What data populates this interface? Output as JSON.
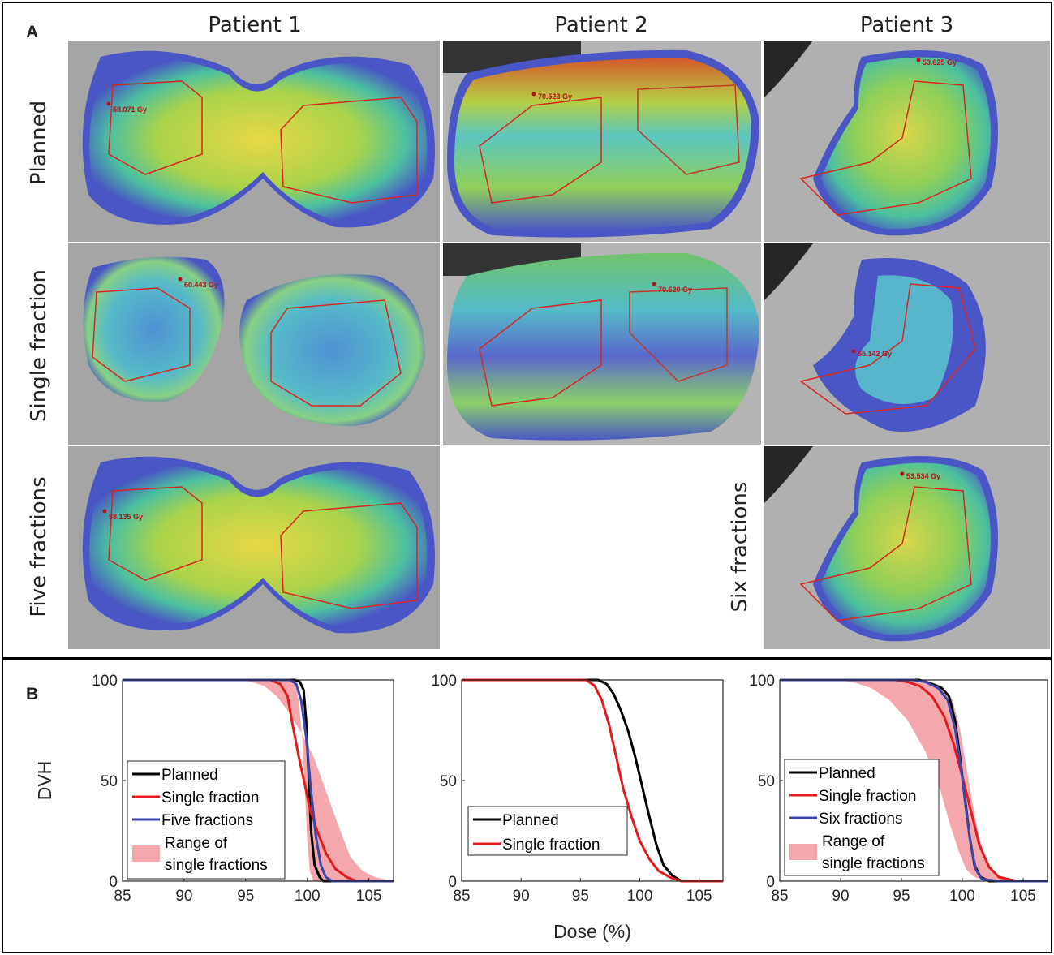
{
  "panels": {
    "a": "A",
    "b": "B"
  },
  "columns": [
    "Patient 1",
    "Patient 2",
    "Patient 3"
  ],
  "rows": {
    "planned": "Planned",
    "single": "Single fraction",
    "five": "Five fractions",
    "six": "Six fractions"
  },
  "dose_labels": {
    "p1_planned": "58.071 Gy",
    "p1_single": "60.443 Gy",
    "p1_five": "58.135 Gy",
    "p2_planned": "70.523 Gy",
    "p2_single": "70.620 Gy",
    "p3_planned": "53.625 Gy",
    "p3_single": "55.142 Gy",
    "p3_six": "53.534 Gy"
  },
  "colors": {
    "planned": "#000000",
    "single": "#e41a1c",
    "fractions": "#3a46a8",
    "range": "#f4a7ac",
    "contour": "#d8261e"
  },
  "chart_data": [
    {
      "type": "line",
      "panel": "Patient 1",
      "ylabel": "DVH",
      "xlabel": "",
      "xlim": [
        85,
        107
      ],
      "ylim": [
        0,
        100
      ],
      "xticks": [
        85,
        90,
        95,
        100,
        105
      ],
      "yticks": [
        0,
        50,
        100
      ],
      "legend": [
        "Planned",
        "Single fraction",
        "Five fractions",
        "Range of",
        "single fractions"
      ],
      "series": [
        {
          "name": "Planned",
          "color": "#000000",
          "points": [
            [
              85,
              100
            ],
            [
              99,
              100
            ],
            [
              99.4,
              99
            ],
            [
              99.7,
              95
            ],
            [
              99.9,
              80
            ],
            [
              100.1,
              55
            ],
            [
              100.3,
              25
            ],
            [
              100.6,
              8
            ],
            [
              101,
              2
            ],
            [
              101.3,
              0
            ],
            [
              107,
              0
            ]
          ]
        },
        {
          "name": "Single fraction",
          "color": "#e41a1c",
          "points": [
            [
              85,
              100
            ],
            [
              97,
              100
            ],
            [
              97.8,
              98
            ],
            [
              98.4,
              92
            ],
            [
              98.8,
              78
            ],
            [
              99.3,
              62
            ],
            [
              99.8,
              48
            ],
            [
              100.2,
              36
            ],
            [
              100.8,
              25
            ],
            [
              101.5,
              14
            ],
            [
              102.3,
              6
            ],
            [
              103.2,
              2
            ],
            [
              104,
              0
            ],
            [
              107,
              0
            ]
          ]
        },
        {
          "name": "Five fractions",
          "color": "#3a46a8",
          "points": [
            [
              85,
              100
            ],
            [
              98.6,
              100
            ],
            [
              99.1,
              98
            ],
            [
              99.5,
              90
            ],
            [
              99.9,
              72
            ],
            [
              100.3,
              45
            ],
            [
              100.7,
              22
            ],
            [
              101.1,
              8
            ],
            [
              101.5,
              2
            ],
            [
              102,
              0
            ],
            [
              107,
              0
            ]
          ]
        }
      ],
      "band": {
        "name": "Range of single fractions",
        "color": "#f4a7ac",
        "upper": [
          [
            94.5,
            100
          ],
          [
            95.5,
            99
          ],
          [
            96.5,
            97
          ],
          [
            97.5,
            92
          ],
          [
            98.5,
            84
          ],
          [
            99.5,
            74
          ],
          [
            100.5,
            62
          ],
          [
            101.5,
            45
          ],
          [
            102.5,
            28
          ],
          [
            103.5,
            12
          ],
          [
            104.5,
            5
          ],
          [
            105.5,
            2
          ],
          [
            106.8,
            0
          ]
        ],
        "lower": [
          [
            99,
            100
          ],
          [
            99.3,
            90
          ],
          [
            99.6,
            70
          ],
          [
            99.8,
            45
          ],
          [
            100,
            20
          ],
          [
            100.2,
            5
          ],
          [
            100.5,
            0
          ]
        ]
      }
    },
    {
      "type": "line",
      "panel": "Patient 2",
      "ylabel": "",
      "xlabel": "Dose (%)",
      "xlim": [
        85,
        107
      ],
      "ylim": [
        0,
        100
      ],
      "xticks": [
        85,
        90,
        95,
        100,
        105
      ],
      "yticks": [
        0,
        50,
        100
      ],
      "legend": [
        "Planned",
        "Single fraction"
      ],
      "series": [
        {
          "name": "Planned",
          "color": "#000000",
          "points": [
            [
              85,
              100
            ],
            [
              96.5,
              100
            ],
            [
              97.2,
              98
            ],
            [
              97.8,
              93
            ],
            [
              98.4,
              85
            ],
            [
              99,
              75
            ],
            [
              99.6,
              62
            ],
            [
              100.2,
              47
            ],
            [
              100.8,
              32
            ],
            [
              101.4,
              18
            ],
            [
              102,
              8
            ],
            [
              102.7,
              3
            ],
            [
              103.5,
              0
            ],
            [
              107,
              0
            ]
          ]
        },
        {
          "name": "Single fraction",
          "color": "#e41a1c",
          "points": [
            [
              85,
              100
            ],
            [
              95.5,
              100
            ],
            [
              96.2,
              97
            ],
            [
              96.8,
              90
            ],
            [
              97.4,
              78
            ],
            [
              98,
              62
            ],
            [
              98.6,
              46
            ],
            [
              99.3,
              32
            ],
            [
              100,
              20
            ],
            [
              100.8,
              11
            ],
            [
              101.6,
              5
            ],
            [
              102.5,
              2
            ],
            [
              103.5,
              0
            ],
            [
              107,
              0
            ]
          ]
        }
      ]
    },
    {
      "type": "line",
      "panel": "Patient 3",
      "ylabel": "",
      "xlabel": "",
      "xlim": [
        85,
        107
      ],
      "ylim": [
        0,
        100
      ],
      "xticks": [
        85,
        90,
        95,
        100,
        105
      ],
      "yticks": [
        0,
        50,
        100
      ],
      "legend": [
        "Planned",
        "Single fraction",
        "Six fractions",
        "Range of",
        "single fractions"
      ],
      "series": [
        {
          "name": "Planned",
          "color": "#000000",
          "points": [
            [
              85,
              100
            ],
            [
              96.5,
              100
            ],
            [
              97.5,
              98
            ],
            [
              98.3,
              96
            ],
            [
              98.9,
              92
            ],
            [
              99.4,
              80
            ],
            [
              99.8,
              62
            ],
            [
              100.2,
              42
            ],
            [
              100.6,
              22
            ],
            [
              101,
              8
            ],
            [
              101.5,
              2
            ],
            [
              102.2,
              0
            ],
            [
              107,
              0
            ]
          ]
        },
        {
          "name": "Single fraction",
          "color": "#e41a1c",
          "points": [
            [
              85,
              100
            ],
            [
              94.5,
              100
            ],
            [
              95.5,
              99
            ],
            [
              96.5,
              97
            ],
            [
              97.5,
              92
            ],
            [
              98.5,
              82
            ],
            [
              99.3,
              68
            ],
            [
              100,
              52
            ],
            [
              100.7,
              35
            ],
            [
              101.4,
              18
            ],
            [
              102.2,
              7
            ],
            [
              103,
              2
            ],
            [
              104.5,
              0
            ],
            [
              107,
              0
            ]
          ]
        },
        {
          "name": "Six fractions",
          "color": "#3a46a8",
          "points": [
            [
              85,
              100
            ],
            [
              96,
              100
            ],
            [
              97,
              99
            ],
            [
              98,
              96
            ],
            [
              98.8,
              90
            ],
            [
              99.4,
              76
            ],
            [
              99.9,
              56
            ],
            [
              100.3,
              36
            ],
            [
              100.7,
              18
            ],
            [
              101.1,
              6
            ],
            [
              101.6,
              1
            ],
            [
              103,
              0
            ],
            [
              107,
              0
            ]
          ]
        }
      ],
      "band": {
        "name": "Range of single fractions",
        "color": "#f4a7ac",
        "upper": [
          [
            97,
            100
          ],
          [
            98.3,
            97
          ],
          [
            99.2,
            90
          ],
          [
            99.8,
            76
          ],
          [
            100.3,
            58
          ],
          [
            100.8,
            40
          ],
          [
            101.3,
            24
          ],
          [
            101.9,
            11
          ],
          [
            102.7,
            4
          ],
          [
            103.6,
            1
          ],
          [
            105,
            0
          ]
        ],
        "lower": [
          [
            89.5,
            100
          ],
          [
            91,
            99
          ],
          [
            92.5,
            96
          ],
          [
            94,
            90
          ],
          [
            95.5,
            80
          ],
          [
            97,
            64
          ],
          [
            98.2,
            45
          ],
          [
            99,
            28
          ],
          [
            99.7,
            15
          ],
          [
            100.3,
            6
          ],
          [
            101,
            2
          ],
          [
            102,
            0
          ]
        ]
      }
    }
  ]
}
